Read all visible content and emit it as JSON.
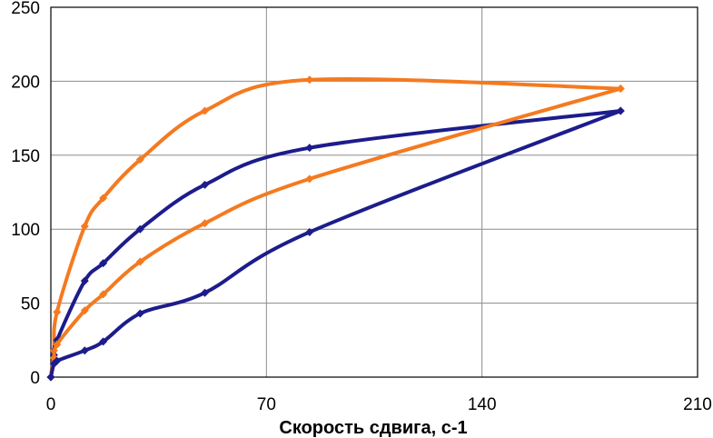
{
  "chart_data": {
    "type": "line",
    "title": "",
    "xlabel": "Скорость сдвига, с-1",
    "ylabel": "",
    "xlim": [
      0,
      210
    ],
    "ylim": [
      0,
      250
    ],
    "xticks": [
      0,
      70,
      140,
      210
    ],
    "yticks": [
      0,
      50,
      100,
      150,
      200,
      250
    ],
    "grid": true,
    "legend": "none",
    "series": [
      {
        "color": "#f47a20",
        "marker": "diamond",
        "points": [
          [
            0,
            0
          ],
          [
            1,
            18
          ],
          [
            2,
            44
          ],
          [
            11,
            102
          ],
          [
            17,
            121
          ],
          [
            29,
            147
          ],
          [
            50,
            180
          ],
          [
            84,
            201
          ],
          [
            185,
            195
          ]
        ]
      },
      {
        "color": "#1c1c8c",
        "marker": "diamond",
        "points": [
          [
            0,
            0
          ],
          [
            1,
            15
          ],
          [
            2,
            25
          ],
          [
            11,
            65
          ],
          [
            17,
            77
          ],
          [
            29,
            100
          ],
          [
            50,
            130
          ],
          [
            84,
            155
          ],
          [
            185,
            180
          ]
        ]
      },
      {
        "color": "#f47a20",
        "marker": "diamond",
        "points": [
          [
            0,
            0
          ],
          [
            1,
            13
          ],
          [
            2,
            22
          ],
          [
            11,
            45
          ],
          [
            17,
            56
          ],
          [
            29,
            78
          ],
          [
            50,
            104
          ],
          [
            84,
            134
          ],
          [
            185,
            195
          ]
        ]
      },
      {
        "color": "#1c1c8c",
        "marker": "diamond",
        "points": [
          [
            0,
            0
          ],
          [
            1,
            9
          ],
          [
            2,
            11
          ],
          [
            11,
            18
          ],
          [
            17,
            24
          ],
          [
            29,
            43
          ],
          [
            50,
            57
          ],
          [
            84,
            98
          ],
          [
            185,
            180
          ]
        ]
      }
    ]
  }
}
